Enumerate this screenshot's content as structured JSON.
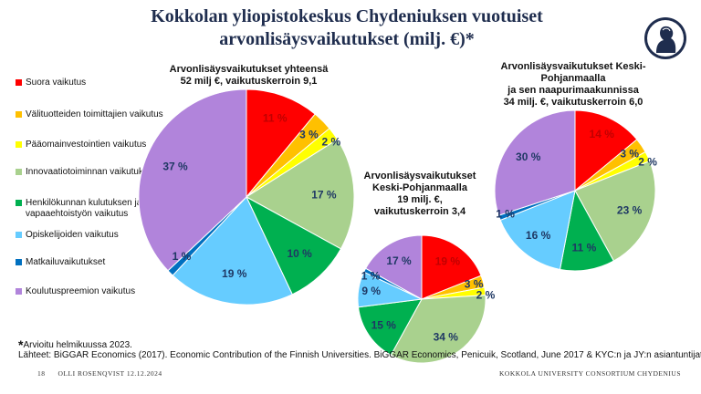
{
  "title_line1": "Kokkolan yliopistokeskus Chydeniuksen vuotuiset",
  "title_line2": "arvonlisäysvaikutukset (milj. €)*",
  "legend": [
    {
      "label": "Suora vaikutus",
      "color": "#ff0000"
    },
    {
      "label": "Välituotteiden toimittajien vaikutus",
      "color": "#ffc000"
    },
    {
      "label": "Pääomainvestointien vaikutus",
      "color": "#ffff00"
    },
    {
      "label": "Innovaatiotoiminnan vaikutukset",
      "color": "#a9d18e"
    },
    {
      "label": "Henkilökunnan kulutuksen ja vapaaehtoistyön vaikutus",
      "color": "#00b050"
    },
    {
      "label": "Opiskelijoiden vaikutus",
      "color": "#66ccff"
    },
    {
      "label": "Matkailuvaikutukset",
      "color": "#0070c0"
    },
    {
      "label": "Koulutuspreemion vaikutus",
      "color": "#b184db"
    }
  ],
  "chart_data": [
    {
      "type": "pie",
      "title_lines": [
        "Arvonlisäysvaikutukset yhteensä",
        "52 milj €, vaikutuskerroin 9,1"
      ],
      "categories": [
        "Suora vaikutus",
        "Välituotteiden toimittajien vaikutus",
        "Pääomainvestointien vaikutus",
        "Innovaatiotoiminnan vaikutukset",
        "Henkilökunnan kulutuksen ja vapaaehtoistyön vaikutus",
        "Opiskelijoiden vaikutus",
        "Matkailuvaikutukset",
        "Koulutuspreemion vaikutus"
      ],
      "values": [
        11,
        3,
        2,
        17,
        10,
        19,
        1,
        37
      ],
      "labels": [
        "11 %",
        "3 %",
        "2 %",
        "17 %",
        "10 %",
        "19 %",
        "1 %",
        "37 %"
      ]
    },
    {
      "type": "pie",
      "title_lines": [
        "Arvonlisäysvaikutukset",
        "Keski-Pohjanmaalla",
        "19 milj. €,",
        "vaikutuskerroin 3,4"
      ],
      "categories": [
        "Suora vaikutus",
        "Välituotteiden toimittajien vaikutus",
        "Pääomainvestointien vaikutus",
        "Innovaatiotoiminnan vaikutukset",
        "Henkilökunnan kulutuksen ja vapaaehtoistyön vaikutus",
        "Opiskelijoiden vaikutus",
        "Matkailuvaikutukset",
        "Koulutuspreemion vaikutus"
      ],
      "values": [
        19,
        3,
        2,
        34,
        15,
        9,
        1,
        17
      ],
      "labels": [
        "19 %",
        "3 %",
        "2 %",
        "34 %",
        "15 %",
        "9 %",
        "1 %",
        "17 %"
      ]
    },
    {
      "type": "pie",
      "title_lines": [
        "Arvonlisäysvaikutukset Keski-",
        "Pohjanmaalla",
        "ja sen naapurimaakunnissa",
        "34 milj. €, vaikutuskerroin 6,0"
      ],
      "categories": [
        "Suora vaikutus",
        "Välituotteiden toimittajien vaikutus",
        "Pääomainvestointien vaikutus",
        "Innovaatiotoiminnan vaikutukset",
        "Henkilökunnan kulutuksen ja vapaaehtoistyön vaikutus",
        "Opiskelijoiden vaikutus",
        "Matkailuvaikutukset",
        "Koulutuspreemion vaikutus"
      ],
      "values": [
        14,
        3,
        2,
        23,
        11,
        16,
        1,
        30
      ],
      "labels": [
        "14 %",
        "3 %",
        "2 %",
        "23 %",
        "11 %",
        "16 %",
        "1 %",
        "30 %"
      ]
    }
  ],
  "footnote_star": "*",
  "footnote": "Arvioitu helmikuussa 2023.",
  "sources": "Lähteet: BiGGAR Economics (2017). Economic Contribution of the Finnish Universities. BiGGAR Economics, Penicuik, Scotland, June 2017 & KYC:n ja JY:n asiantuntijat.",
  "footer": {
    "page": "18",
    "author": "OLLI ROSENQVIST 12.12.2024",
    "org": "KOKKOLA UNIVERSITY CONSORTIUM CHYDENIUS"
  },
  "logo_icon": "chydenius-portrait-icon",
  "label_colors": {
    "dark": "#1f3864",
    "light": "#ffffff",
    "on_red": "#c00000"
  }
}
